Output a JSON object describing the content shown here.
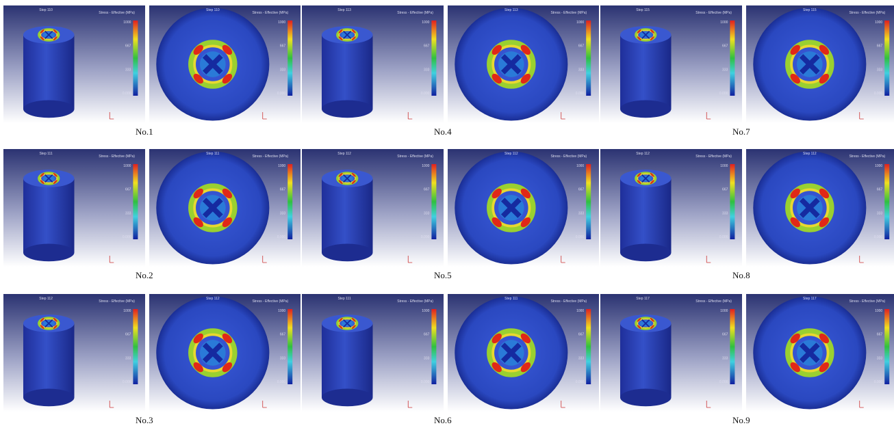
{
  "legend": {
    "title": "Stress - Effective (MPa)",
    "ticks": [
      "1000",
      "667",
      "333",
      "0.000"
    ]
  },
  "panels": [
    {
      "label": "No.1",
      "step": "Step 110"
    },
    {
      "label": "No.2",
      "step": "Step 111"
    },
    {
      "label": "No.3",
      "step": "Step 112"
    },
    {
      "label": "No.4",
      "step": "Step 113"
    },
    {
      "label": "No.5",
      "step": "Step 112"
    },
    {
      "label": "No.6",
      "step": "Step 111"
    },
    {
      "label": "No.7",
      "step": "Step 115"
    },
    {
      "label": "No.8",
      "step": "Step 112"
    },
    {
      "label": "No.9",
      "step": "Step 117"
    }
  ]
}
